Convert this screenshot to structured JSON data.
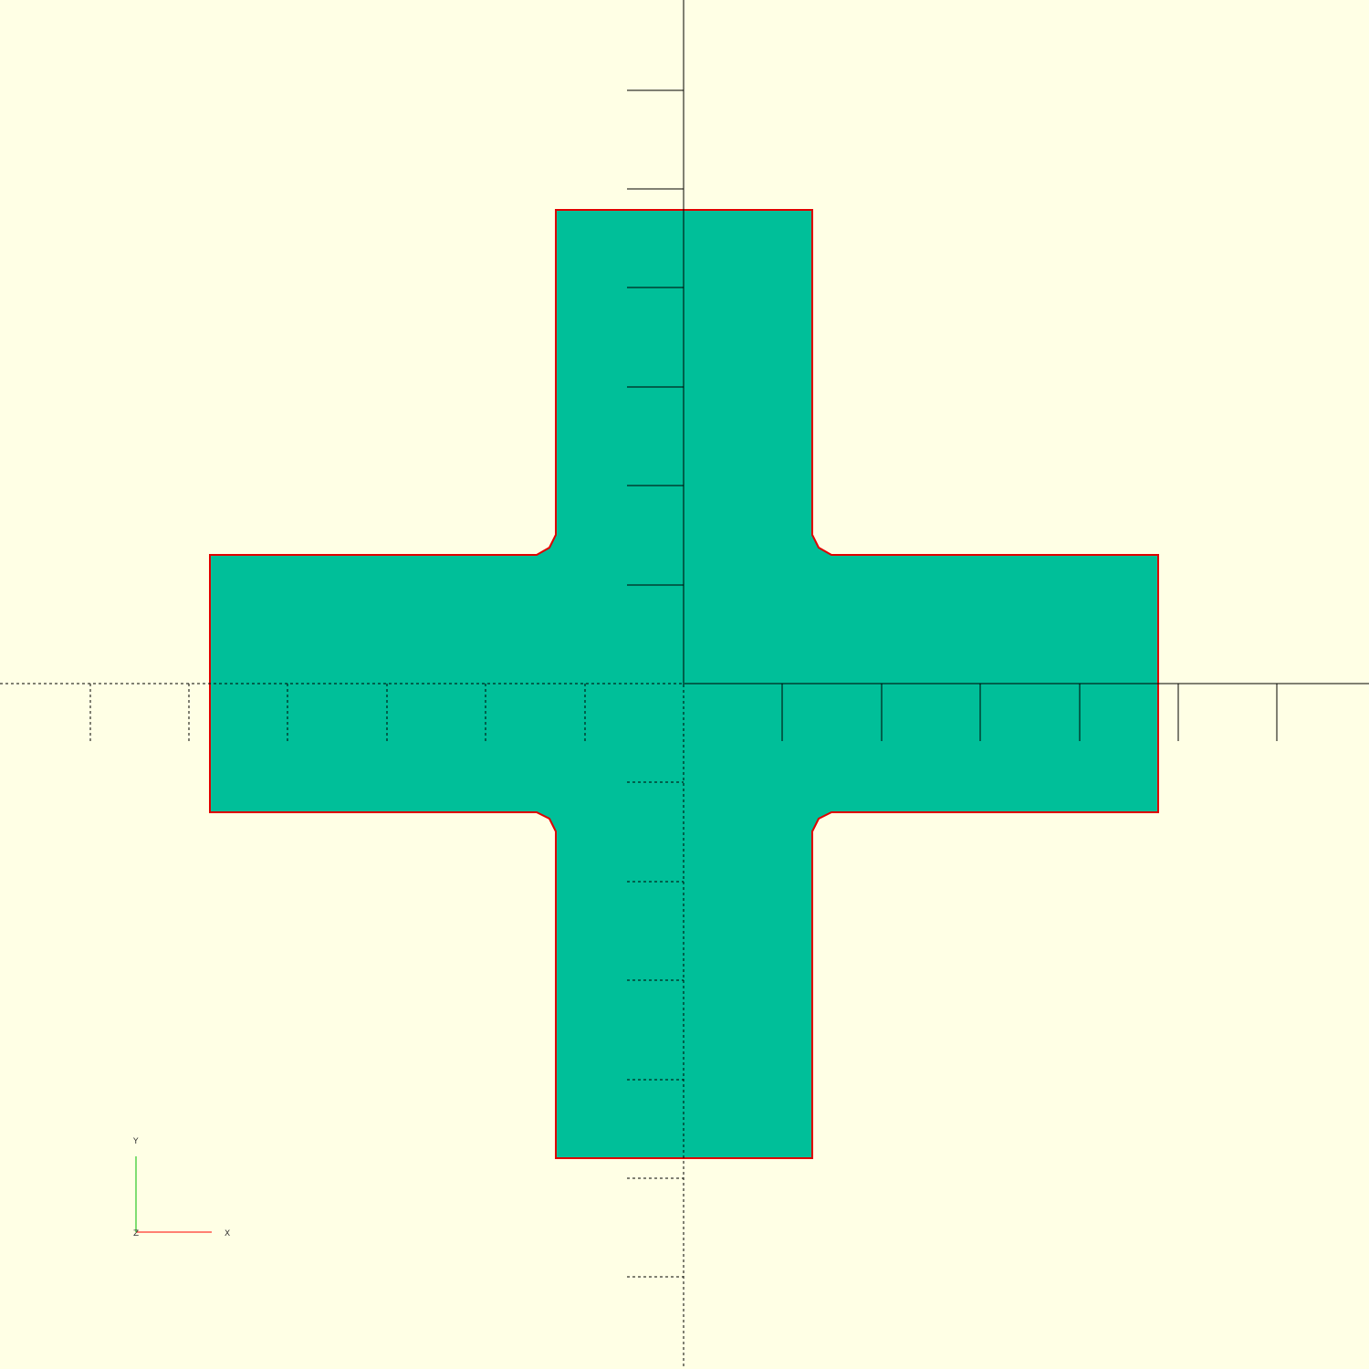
{
  "viewport": {
    "background_color": "#ffffe5",
    "shape_fill_color": "#00bf99",
    "shape_outline_color": "#e00000",
    "axis_color": "#000000"
  },
  "axis_gizmo": {
    "x_label": "X",
    "y_label": "Y",
    "z_label": "Z",
    "x_color": "#ff0000",
    "y_color": "#00bb00"
  },
  "model": {
    "shape": "cross",
    "total_span": 4.8,
    "arm_width": 1.3,
    "inner_corner_chamfer": 0.1,
    "axis_tick_spacing": 0.5
  }
}
